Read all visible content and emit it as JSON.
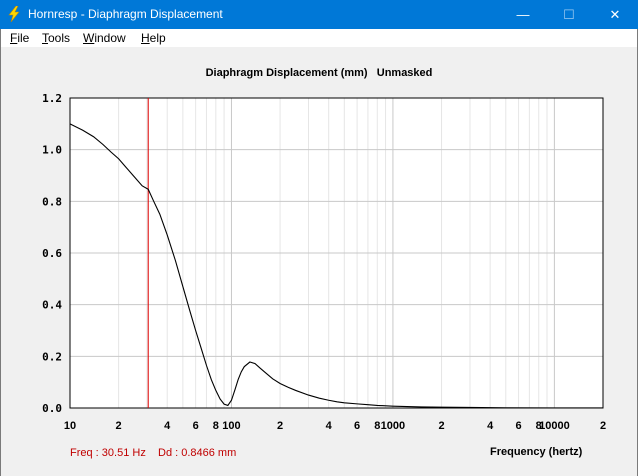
{
  "window": {
    "title": "Hornresp - Diaphragm Displacement",
    "minimize_glyph": "—",
    "maximize_glyph": "☐",
    "close_glyph": "✕",
    "icon": "lightning-icon",
    "accent_color": "#0078d7"
  },
  "menu": [
    {
      "u": "F",
      "rest": "ile"
    },
    {
      "u": "T",
      "rest": "ools"
    },
    {
      "u": "W",
      "rest": "indow"
    },
    {
      "u": "H",
      "rest": "elp"
    }
  ],
  "chart_header": {
    "title": "Diaphragm Displacement (mm)",
    "mode": "Unmasked"
  },
  "readout": {
    "freq": "Freq : 30.51 Hz",
    "dd": "Dd : 0.8466 mm",
    "color": "#c00000"
  },
  "chart_data": {
    "type": "line",
    "title": "Diaphragm Displacement (mm)",
    "xlabel": "Frequency (hertz)",
    "ylabel": "",
    "x_scale": "log",
    "xlim": [
      10,
      20000
    ],
    "ylim": [
      0,
      1.2
    ],
    "grid": true,
    "y_ticks": [
      "0.0",
      "0.2",
      "0.4",
      "0.6",
      "0.8",
      "1.0",
      "1.2"
    ],
    "x_ticks": [
      {
        "value": 10,
        "label": "10"
      },
      {
        "value": 20,
        "label": "2"
      },
      {
        "value": 40,
        "label": "4"
      },
      {
        "value": 60,
        "label": "6"
      },
      {
        "value": 80,
        "label": "8"
      },
      {
        "value": 100,
        "label": "100"
      },
      {
        "value": 200,
        "label": "2"
      },
      {
        "value": 400,
        "label": "4"
      },
      {
        "value": 600,
        "label": "6"
      },
      {
        "value": 800,
        "label": "8"
      },
      {
        "value": 1000,
        "label": "1000"
      },
      {
        "value": 2000,
        "label": "2"
      },
      {
        "value": 4000,
        "label": "4"
      },
      {
        "value": 6000,
        "label": "6"
      },
      {
        "value": 8000,
        "label": "8"
      },
      {
        "value": 10000,
        "label": "10000"
      },
      {
        "value": 20000,
        "label": "2"
      }
    ],
    "marker": {
      "x": 30.51,
      "y": 0.8466,
      "color": "#e00000"
    },
    "series": [
      {
        "color": "#000000",
        "x": [
          10,
          12,
          14,
          16,
          18,
          20,
          22,
          25,
          28,
          30.51,
          33,
          36,
          40,
          45,
          50,
          55,
          60,
          65,
          70,
          75,
          80,
          85,
          90,
          95,
          100,
          105,
          110,
          115,
          120,
          130,
          140,
          150,
          160,
          180,
          200,
          225,
          250,
          300,
          350,
          400,
          450,
          500,
          600,
          700,
          800,
          1000,
          1500,
          2000,
          3000,
          5000,
          10000,
          20000
        ],
        "y": [
          1.1,
          1.075,
          1.05,
          1.02,
          0.99,
          0.965,
          0.935,
          0.895,
          0.86,
          0.8466,
          0.8,
          0.75,
          0.67,
          0.57,
          0.47,
          0.38,
          0.3,
          0.23,
          0.165,
          0.11,
          0.068,
          0.035,
          0.015,
          0.01,
          0.03,
          0.07,
          0.11,
          0.14,
          0.16,
          0.178,
          0.172,
          0.155,
          0.14,
          0.113,
          0.095,
          0.08,
          0.068,
          0.05,
          0.038,
          0.03,
          0.024,
          0.02,
          0.016,
          0.013,
          0.01,
          0.007,
          0.004,
          0.003,
          0.002,
          0.001,
          0.0005,
          0.0002
        ]
      }
    ]
  }
}
